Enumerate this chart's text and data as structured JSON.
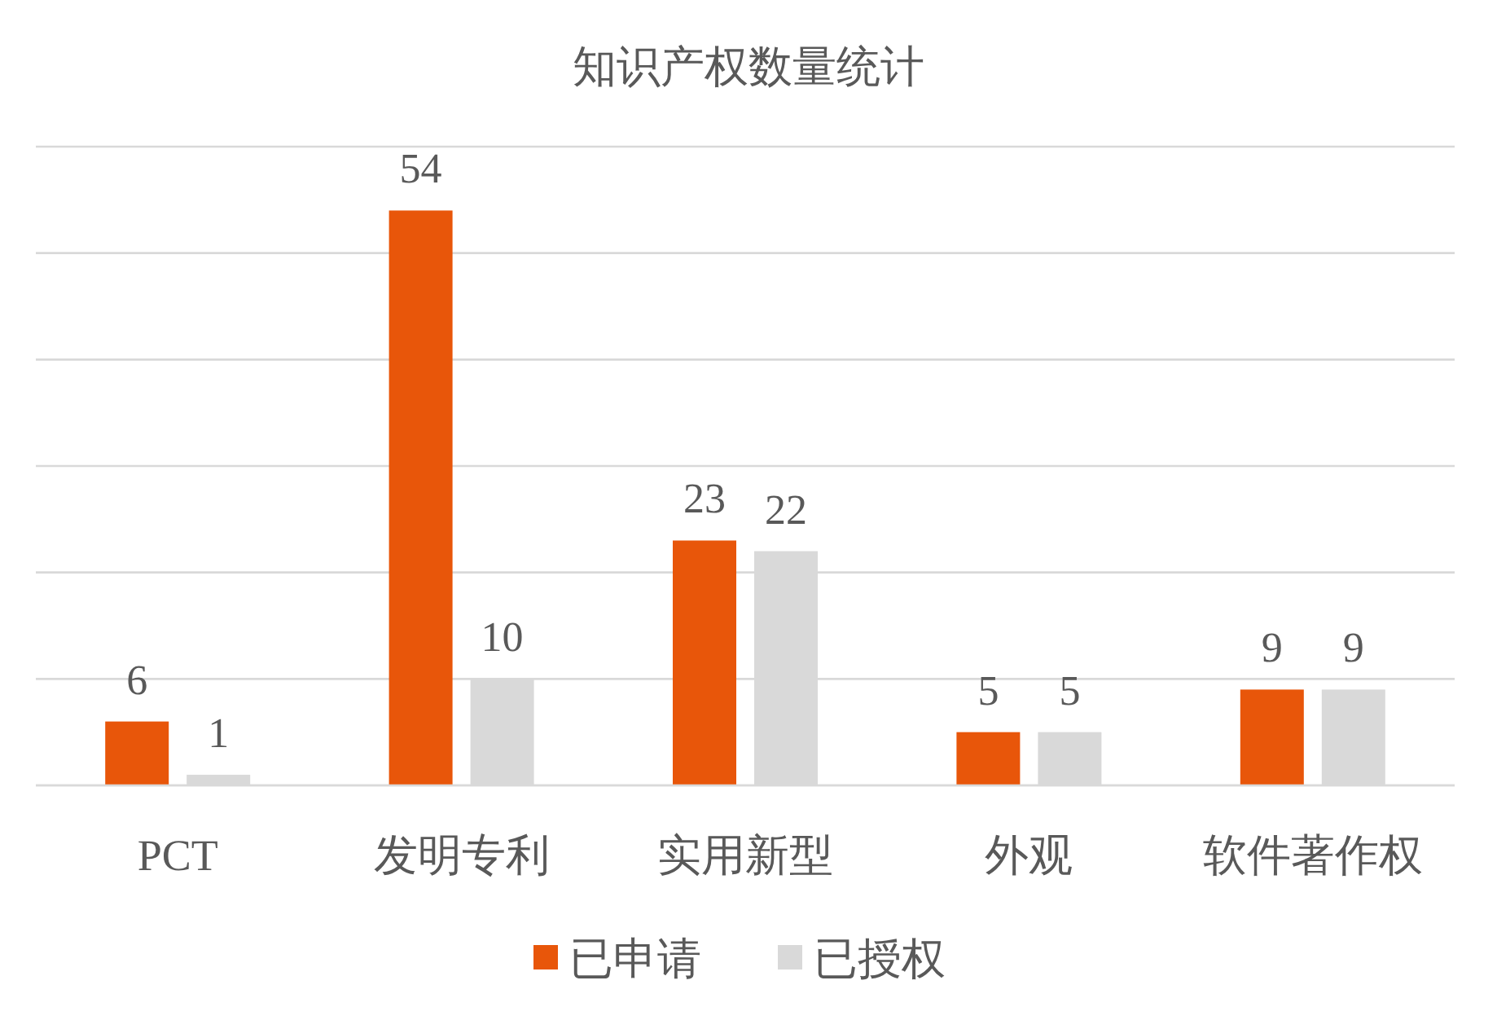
{
  "chart_data": {
    "type": "bar",
    "title": "知识产权数量统计",
    "categories": [
      "PCT",
      "发明专利",
      "实用新型",
      "外观",
      "软件著作权"
    ],
    "series": [
      {
        "name": "已申请",
        "color": "#e8560a",
        "values": [
          6,
          54,
          23,
          5,
          9
        ]
      },
      {
        "name": "已授权",
        "color": "#d9d9d9",
        "values": [
          1,
          10,
          22,
          5,
          9
        ]
      }
    ],
    "ylim": [
      0,
      60
    ],
    "yticks": [
      {
        "value": 0,
        "label": null
      },
      {
        "value": 10,
        "label": null
      },
      {
        "value": 20,
        "label": null
      },
      {
        "value": 30,
        "label": null
      },
      {
        "value": 40,
        "label": null
      },
      {
        "value": 50,
        "label": null
      },
      {
        "value": 60,
        "label": null
      }
    ],
    "tick_labels": "x",
    "grid": "y",
    "legend": "bottom",
    "data_labels": true
  }
}
